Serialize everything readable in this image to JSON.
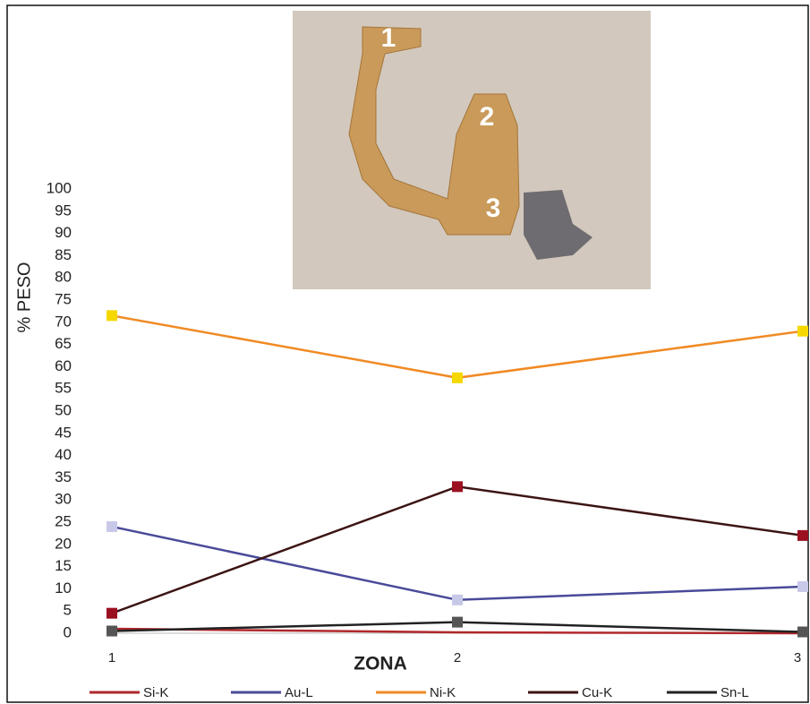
{
  "chart_data": {
    "type": "line",
    "y_label": "% PESO",
    "x_label": "ZONA",
    "image_labels": [
      "1",
      "2",
      "3"
    ],
    "categories": [
      "1",
      "2",
      "3"
    ],
    "ylim": [
      0,
      100
    ],
    "yticks": [
      0,
      5,
      10,
      15,
      20,
      25,
      30,
      35,
      40,
      45,
      50,
      55,
      60,
      65,
      70,
      75,
      80,
      85,
      90,
      95,
      100
    ],
    "series": [
      {
        "name": "Si-K",
        "color": "#b0282c",
        "values": [
          1,
          0.2,
          0
        ]
      },
      {
        "name": "Au-L",
        "color": "#4a4a9a",
        "marker_color": "#c8c8e8",
        "values": [
          24,
          7.5,
          10.5
        ]
      },
      {
        "name": "Ni-K",
        "color": "#f08a24",
        "marker_color": "#f5d800",
        "values": [
          71.5,
          57.5,
          68
        ]
      },
      {
        "name": "Cu-K",
        "color": "#3c1414",
        "marker_color": "#9a1020",
        "values": [
          4.5,
          33,
          22
        ]
      },
      {
        "name": "Sn-L",
        "color": "#222222",
        "marker_color": "#555555",
        "values": [
          0.5,
          2.5,
          0.3
        ]
      }
    ]
  }
}
